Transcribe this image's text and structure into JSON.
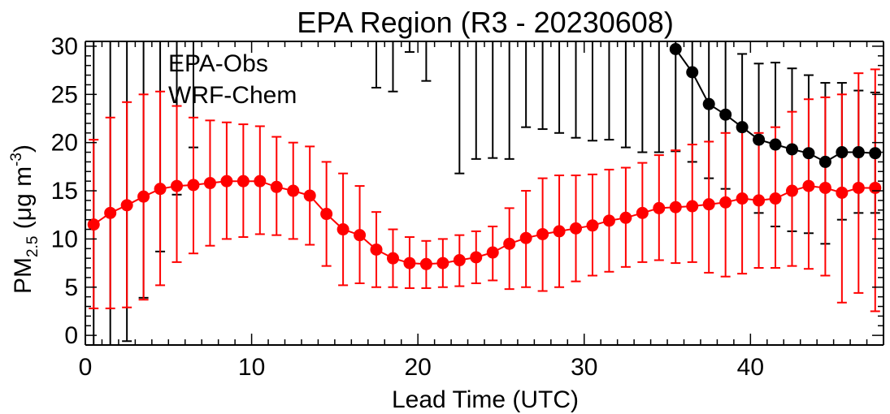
{
  "chart_data": {
    "type": "line",
    "title": "EPA Region (R3 - 20230608)",
    "xlabel": "Lead Time (UTC)",
    "ylabel": {
      "base": "PM",
      "sub": "2.5",
      "mid": " (μg m",
      "sup": "-3",
      "end": ")"
    },
    "xlim": [
      0,
      48
    ],
    "ylim": [
      -1,
      30.5
    ],
    "xticks": [
      0,
      10,
      20,
      30,
      40
    ],
    "yticks": [
      0,
      5,
      10,
      15,
      20,
      25,
      30
    ],
    "x_minor_step": 1,
    "y_minor_step": 1,
    "legend_position": "top-left",
    "series": [
      {
        "name": "EPA-Obs",
        "color": "#000000",
        "x": [
          35.5,
          36.5,
          37.5,
          38.5,
          39.5,
          40.5,
          41.5,
          42.5,
          43.5,
          44.5,
          45.5,
          46.5,
          47.5
        ],
        "y": [
          29.7,
          27.3,
          24.0,
          22.9,
          21.6,
          20.3,
          19.8,
          19.3,
          18.9,
          18.0,
          19.0,
          19.0,
          18.9
        ],
        "error_bars": [
          {
            "x": 0.5,
            "lo": -1.0,
            "hi": 31.0
          },
          {
            "x": 1.5,
            "lo": -1.0,
            "hi": 31.0
          },
          {
            "x": 2.5,
            "lo": -0.6,
            "hi": 31.0
          },
          {
            "x": 3.5,
            "lo": 3.9,
            "hi": 31.0
          },
          {
            "x": 4.5,
            "lo": 8.7,
            "hi": 31.0
          },
          {
            "x": 5.5,
            "lo": 14.6,
            "hi": 31.0
          },
          {
            "x": 6.5,
            "lo": 19.5,
            "hi": 31.0
          },
          {
            "x": 17.5,
            "lo": 25.7,
            "hi": 31.0
          },
          {
            "x": 18.5,
            "lo": 25.3,
            "hi": 31.0
          },
          {
            "x": 19.5,
            "lo": 29.4,
            "hi": 31.0
          },
          {
            "x": 20.5,
            "lo": 26.4,
            "hi": 31.0
          },
          {
            "x": 22.5,
            "lo": 16.8,
            "hi": 31.0
          },
          {
            "x": 23.5,
            "lo": 18.3,
            "hi": 31.0
          },
          {
            "x": 24.5,
            "lo": 18.4,
            "hi": 31.0
          },
          {
            "x": 25.5,
            "lo": 18.3,
            "hi": 31.0
          },
          {
            "x": 26.5,
            "lo": 21.6,
            "hi": 31.0
          },
          {
            "x": 27.5,
            "lo": 21.4,
            "hi": 31.0
          },
          {
            "x": 28.5,
            "lo": 21.0,
            "hi": 31.0
          },
          {
            "x": 29.5,
            "lo": 20.5,
            "hi": 31.0
          },
          {
            "x": 30.5,
            "lo": 20.2,
            "hi": 31.0
          },
          {
            "x": 31.5,
            "lo": 20.3,
            "hi": 31.0
          },
          {
            "x": 32.5,
            "lo": 19.5,
            "hi": 31.0
          },
          {
            "x": 33.5,
            "lo": 19.0,
            "hi": 31.0
          },
          {
            "x": 34.5,
            "lo": 19.0,
            "hi": 31.0
          },
          {
            "x": 35.5,
            "lo": 19.1,
            "hi": 31.0
          },
          {
            "x": 36.5,
            "lo": 18.0,
            "hi": 31.0
          },
          {
            "x": 37.5,
            "lo": 16.3,
            "hi": 31.0
          },
          {
            "x": 38.5,
            "lo": 15.2,
            "hi": 31.0
          },
          {
            "x": 39.5,
            "lo": 14.0,
            "hi": 29.2
          },
          {
            "x": 40.5,
            "lo": 12.7,
            "hi": 28.2
          },
          {
            "x": 41.5,
            "lo": 11.3,
            "hi": 28.3
          },
          {
            "x": 42.5,
            "lo": 10.8,
            "hi": 27.7
          },
          {
            "x": 43.5,
            "lo": 10.6,
            "hi": 27.0
          },
          {
            "x": 44.5,
            "lo": 9.5,
            "hi": 26.2
          },
          {
            "x": 45.5,
            "lo": 12.0,
            "hi": 26.2
          },
          {
            "x": 46.5,
            "lo": 12.7,
            "hi": 25.4
          },
          {
            "x": 47.5,
            "lo": 12.7,
            "hi": 25.2
          }
        ]
      },
      {
        "name": "WRF-Chem",
        "color": "#ff0000",
        "x": [
          0.5,
          1.5,
          2.5,
          3.5,
          4.5,
          5.5,
          6.5,
          7.5,
          8.5,
          9.5,
          10.5,
          11.5,
          12.5,
          13.5,
          14.5,
          15.5,
          16.5,
          17.5,
          18.5,
          19.5,
          20.5,
          21.5,
          22.5,
          23.5,
          24.5,
          25.5,
          26.5,
          27.5,
          28.5,
          29.5,
          30.5,
          31.5,
          32.5,
          33.5,
          34.5,
          35.5,
          36.5,
          37.5,
          38.5,
          39.5,
          40.5,
          41.5,
          42.5,
          43.5,
          44.5,
          45.5,
          46.5,
          47.5
        ],
        "y": [
          11.5,
          12.7,
          13.5,
          14.4,
          15.2,
          15.5,
          15.6,
          15.8,
          16.0,
          16.0,
          16.0,
          15.4,
          15.0,
          14.5,
          12.6,
          11.0,
          10.4,
          8.9,
          8.0,
          7.5,
          7.4,
          7.5,
          7.8,
          8.1,
          8.6,
          9.5,
          10.1,
          10.5,
          10.8,
          11.1,
          11.4,
          11.9,
          12.2,
          12.7,
          13.2,
          13.3,
          13.4,
          13.6,
          13.8,
          14.2,
          14.0,
          14.2,
          15.0,
          15.5,
          15.3,
          14.8,
          15.3,
          15.3
        ],
        "lo": [
          2.8,
          2.8,
          2.9,
          3.7,
          5.2,
          7.6,
          8.5,
          9.3,
          10.0,
          10.2,
          10.5,
          10.4,
          10.0,
          9.4,
          7.2,
          5.2,
          5.4,
          5.0,
          5.0,
          4.9,
          4.9,
          5.0,
          5.1,
          5.4,
          5.7,
          4.8,
          5.0,
          4.6,
          5.0,
          5.6,
          6.2,
          6.6,
          7.1,
          7.6,
          7.8,
          7.5,
          7.6,
          6.5,
          6.1,
          6.4,
          7.0,
          7.0,
          7.2,
          6.9,
          6.2,
          3.4,
          4.4,
          2.5
        ],
        "hi": [
          20.3,
          22.6,
          24.2,
          25.0,
          25.3,
          23.8,
          22.6,
          22.3,
          22.1,
          21.9,
          21.7,
          20.6,
          20.0,
          19.6,
          18.0,
          16.8,
          15.5,
          12.8,
          11.0,
          10.2,
          9.8,
          10.0,
          10.4,
          10.8,
          11.3,
          13.2,
          15.0,
          16.3,
          16.6,
          16.6,
          16.7,
          17.2,
          17.4,
          17.9,
          18.7,
          19.2,
          19.8,
          20.1,
          21.0,
          21.8,
          21.0,
          21.6,
          23.2,
          24.5,
          24.7,
          25.0,
          27.2,
          27.6
        ]
      }
    ]
  }
}
